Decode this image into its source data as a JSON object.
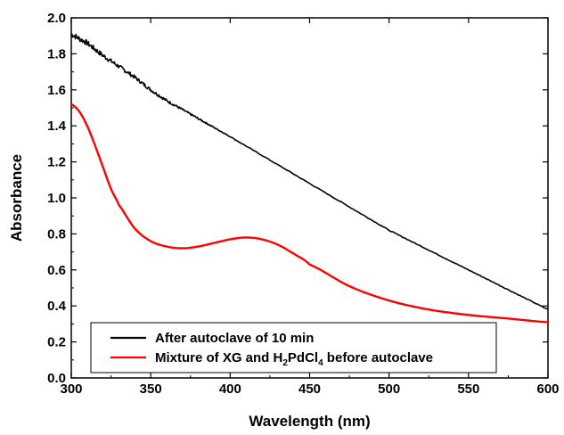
{
  "chart_data": {
    "type": "line",
    "xlabel": "Wavelength (nm)",
    "ylabel": "Absorbance",
    "xlim": [
      300,
      600
    ],
    "ylim": [
      0.0,
      2.0
    ],
    "x_ticks": [
      300,
      350,
      400,
      450,
      500,
      550,
      600
    ],
    "y_ticks": [
      0.0,
      0.2,
      0.4,
      0.6,
      0.8,
      1.0,
      1.2,
      1.4,
      1.6,
      1.8,
      2.0
    ],
    "legend_position": "bottom-left",
    "series": [
      {
        "name": "After autoclave of 10 min",
        "color": "#000000",
        "x": [
          300,
          310,
          320,
          330,
          340,
          350,
          360,
          370,
          380,
          390,
          400,
          425,
          450,
          475,
          500,
          525,
          550,
          575,
          600
        ],
        "y": [
          1.91,
          1.86,
          1.79,
          1.73,
          1.67,
          1.6,
          1.54,
          1.49,
          1.44,
          1.39,
          1.34,
          1.21,
          1.08,
          0.95,
          0.82,
          0.71,
          0.6,
          0.49,
          0.38
        ],
        "noisy": true
      },
      {
        "name": "Mixture of XG and H2PdCl4 before autoclave",
        "color": "#ff0000",
        "x": [
          300,
          305,
          310,
          315,
          320,
          325,
          330,
          340,
          350,
          360,
          370,
          380,
          390,
          400,
          410,
          420,
          430,
          440,
          450,
          475,
          500,
          525,
          550,
          575,
          600
        ],
        "y": [
          1.52,
          1.48,
          1.4,
          1.29,
          1.17,
          1.05,
          0.96,
          0.83,
          0.76,
          0.73,
          0.72,
          0.73,
          0.75,
          0.77,
          0.78,
          0.77,
          0.74,
          0.69,
          0.63,
          0.51,
          0.43,
          0.38,
          0.35,
          0.33,
          0.31
        ]
      }
    ],
    "legend": {
      "entries": [
        {
          "series": 0,
          "parts": [
            {
              "text": "After autoclave of 10 min"
            }
          ]
        },
        {
          "series": 1,
          "parts": [
            {
              "text": "Mixture of XG and H"
            },
            {
              "text": "2",
              "sub": true
            },
            {
              "text": "PdCl"
            },
            {
              "text": "4",
              "sub": true
            },
            {
              "text": " before autoclave"
            }
          ]
        }
      ]
    }
  }
}
